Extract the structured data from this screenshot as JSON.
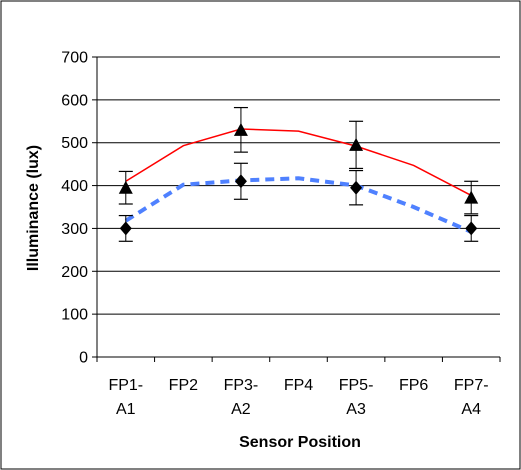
{
  "chart_data": {
    "type": "line",
    "title": "",
    "xlabel": "Sensor Position",
    "ylabel": "Illuminance (lux)",
    "ylim": [
      0,
      700
    ],
    "yticks": [
      0,
      100,
      200,
      300,
      400,
      500,
      600,
      700
    ],
    "grid": "horizontal",
    "legend": "none",
    "categories": [
      "FP1-A1",
      "FP2",
      "FP3-A2",
      "FP4",
      "FP5-A3",
      "FP6",
      "FP7-A4"
    ],
    "category_labels": [
      [
        "FP1-",
        "A1"
      ],
      [
        "FP2"
      ],
      [
        "FP3-",
        "A2"
      ],
      [
        "FP4"
      ],
      [
        "FP5-",
        "A3"
      ],
      [
        "FP6"
      ],
      [
        "FP7-",
        "A4"
      ]
    ],
    "series": [
      {
        "kind": "line",
        "color": "#ff0000",
        "style": "solid",
        "values": [
          410,
          493,
          532,
          527,
          492,
          447,
          377
        ]
      },
      {
        "kind": "line",
        "color": "#4f81ff",
        "style": "dashed",
        "values": [
          318,
          402,
          412,
          417,
          400,
          350,
          292
        ]
      },
      {
        "kind": "markers",
        "marker": "triangle",
        "color": "#000000",
        "x": [
          "FP1-A1",
          "FP3-A2",
          "FP5-A3",
          "FP7-A4"
        ],
        "values": [
          395,
          530,
          495,
          372
        ],
        "errors": [
          38,
          52,
          55,
          38
        ]
      },
      {
        "kind": "markers",
        "marker": "diamond",
        "color": "#000000",
        "x": [
          "FP1-A1",
          "FP3-A2",
          "FP5-A3",
          "FP7-A4"
        ],
        "values": [
          300,
          410,
          395,
          300
        ],
        "errors": [
          30,
          42,
          40,
          30
        ]
      }
    ]
  }
}
